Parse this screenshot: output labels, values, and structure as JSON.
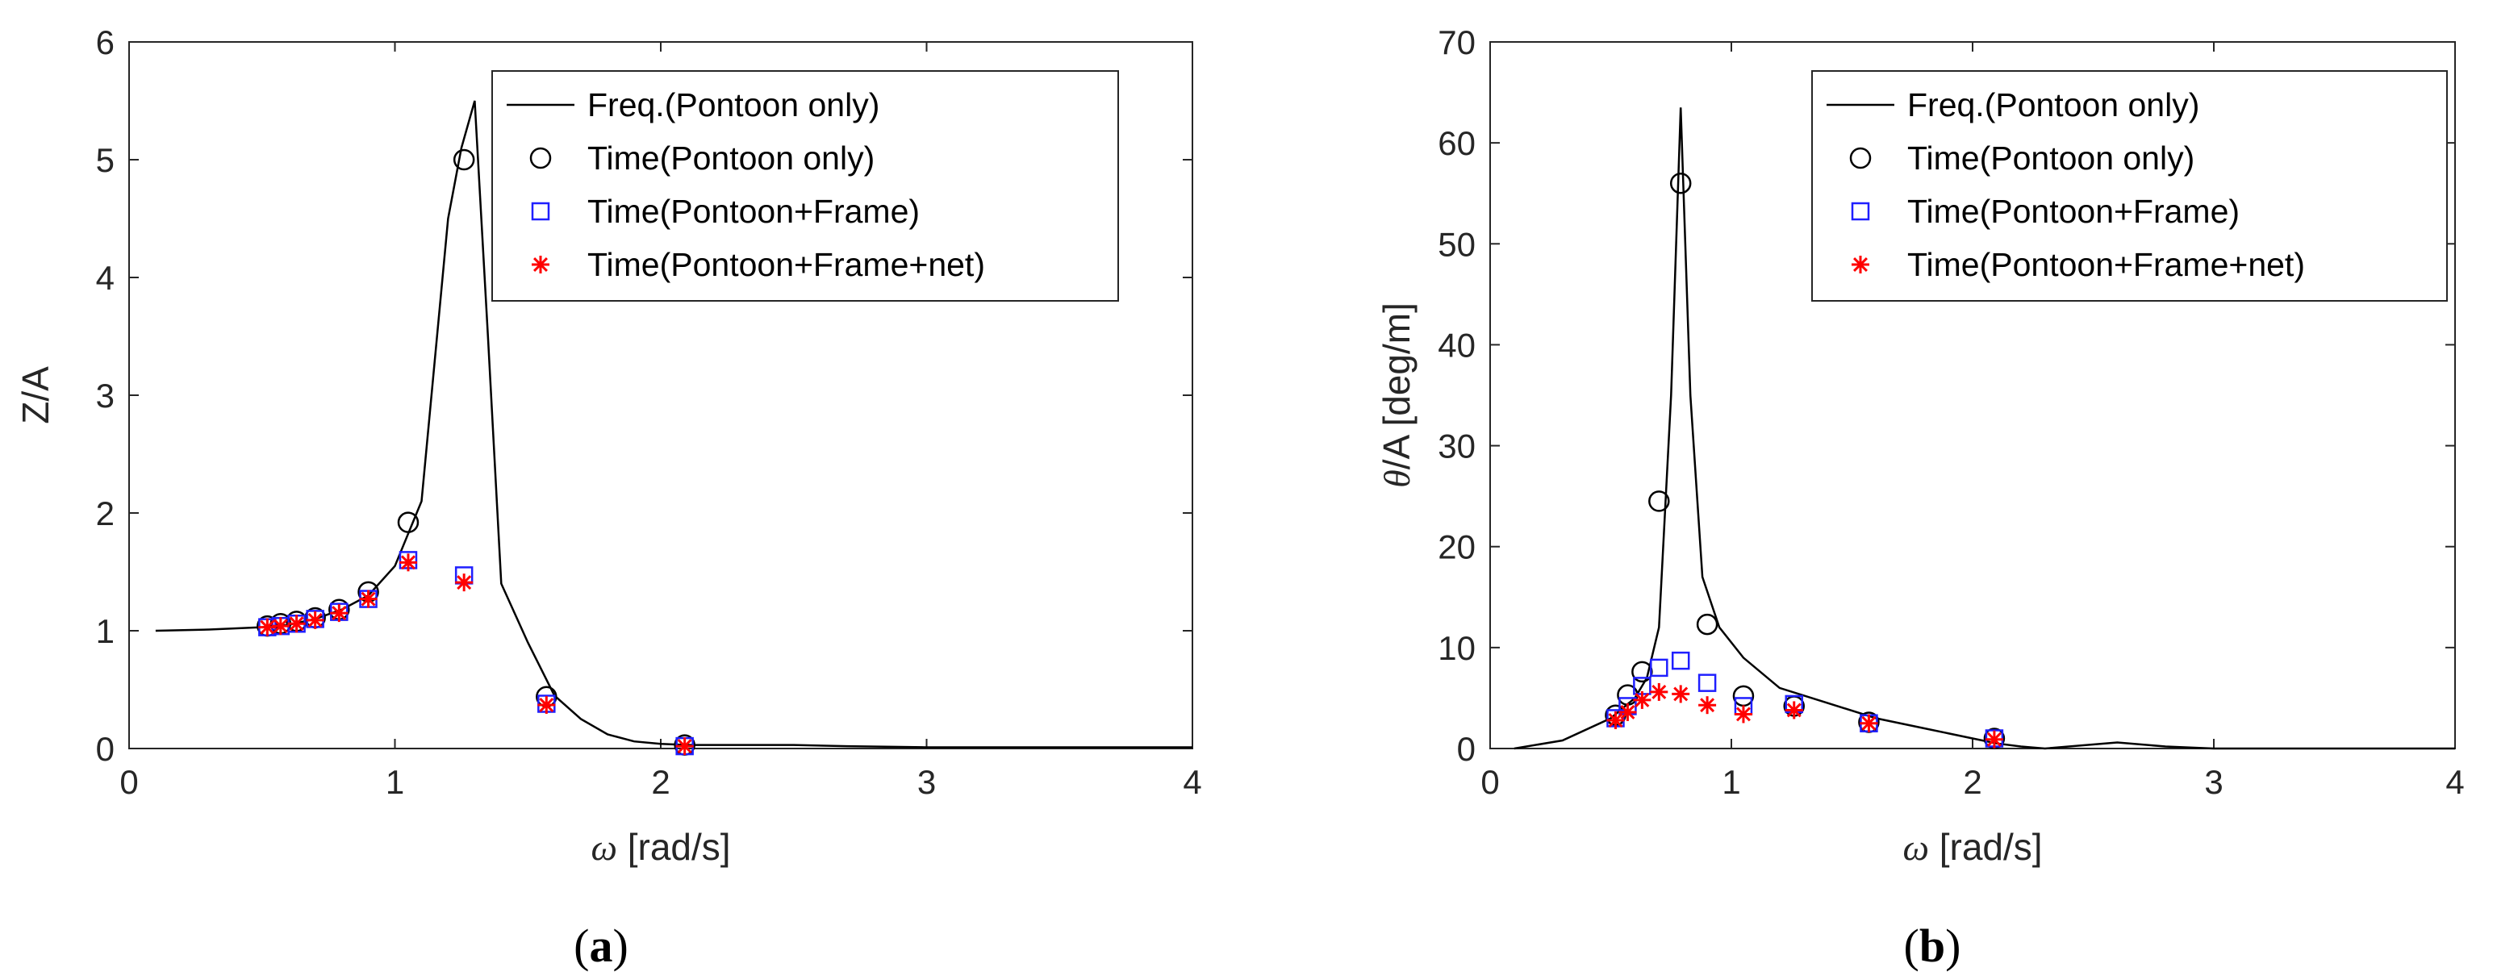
{
  "colors": {
    "freq": "#000000",
    "pontoon_only": "#000000",
    "pontoon_frame": "#1f1fff",
    "pontoon_frame_net": "#ff0000",
    "axes": "#262626"
  },
  "chart_data": [
    {
      "panel": "a",
      "type": "line",
      "xlabel_symbol": "ω",
      "xlabel_unit": "[rad/s]",
      "ylabel": "Z/A",
      "xlim": [
        0,
        4
      ],
      "ylim": [
        0,
        6
      ],
      "xticks": [
        "0",
        "1",
        "2",
        "3",
        "4"
      ],
      "yticks": [
        "0",
        "1",
        "2",
        "3",
        "4",
        "5",
        "6"
      ],
      "grid": false,
      "legend_position": "top-right",
      "label_paren_open": "(",
      "label_letter": "a",
      "label_paren_close": ")",
      "series": [
        {
          "name": "Freq.(Pontoon only)",
          "style": "line",
          "color": "#000000",
          "x": [
            0.1,
            0.3,
            0.5,
            0.6,
            0.7,
            0.8,
            0.9,
            1.0,
            1.1,
            1.2,
            1.25,
            1.3,
            1.35,
            1.4,
            1.5,
            1.6,
            1.7,
            1.8,
            1.9,
            2.0,
            2.1,
            2.3,
            2.5,
            2.7,
            3.0,
            3.5,
            4.0
          ],
          "y": [
            1.0,
            1.01,
            1.03,
            1.05,
            1.1,
            1.18,
            1.3,
            1.55,
            2.1,
            4.5,
            5.1,
            5.5,
            3.5,
            1.4,
            0.9,
            0.45,
            0.25,
            0.12,
            0.06,
            0.04,
            0.03,
            0.03,
            0.03,
            0.02,
            0.01,
            0.01,
            0.01
          ]
        },
        {
          "name": "Time(Pontoon only)",
          "style": "circle",
          "color": "#000000",
          "x": [
            0.52,
            0.57,
            0.63,
            0.7,
            0.79,
            0.9,
            1.05,
            1.26,
            1.57,
            2.09
          ],
          "y": [
            1.04,
            1.06,
            1.08,
            1.11,
            1.18,
            1.33,
            1.92,
            5.0,
            0.44,
            0.03
          ]
        },
        {
          "name": "Time(Pontoon+Frame)",
          "style": "square",
          "color": "#1f1fff",
          "x": [
            0.52,
            0.57,
            0.63,
            0.7,
            0.79,
            0.9,
            1.05,
            1.26,
            1.57,
            2.09
          ],
          "y": [
            1.03,
            1.04,
            1.06,
            1.1,
            1.16,
            1.27,
            1.6,
            1.47,
            0.38,
            0.02
          ]
        },
        {
          "name": "Time(Pontoon+Frame+net)",
          "style": "asterisk",
          "color": "#ff0000",
          "x": [
            0.52,
            0.57,
            0.63,
            0.7,
            0.79,
            0.9,
            1.05,
            1.26,
            1.57,
            2.09
          ],
          "y": [
            1.03,
            1.04,
            1.06,
            1.09,
            1.15,
            1.27,
            1.58,
            1.41,
            0.37,
            0.02
          ]
        }
      ]
    },
    {
      "panel": "b",
      "type": "line",
      "xlabel_symbol": "ω",
      "xlabel_unit": "[rad/s]",
      "ylabel_symbol": "θ",
      "ylabel_rest": "/A [deg/m]",
      "xlim": [
        0,
        4
      ],
      "ylim": [
        0,
        70
      ],
      "xticks": [
        "0",
        "1",
        "2",
        "3",
        "4"
      ],
      "yticks": [
        "0",
        "10",
        "20",
        "30",
        "40",
        "50",
        "60",
        "70"
      ],
      "grid": false,
      "legend_position": "top-right",
      "label_paren_open": "(",
      "label_letter": "b",
      "label_paren_close": ")",
      "series": [
        {
          "name": "Freq.(Pontoon only)",
          "style": "line",
          "color": "#000000",
          "x": [
            0.1,
            0.3,
            0.5,
            0.6,
            0.65,
            0.7,
            0.75,
            0.79,
            0.83,
            0.88,
            0.95,
            1.05,
            1.2,
            1.4,
            1.6,
            1.8,
            2.0,
            2.1,
            2.2,
            2.3,
            2.6,
            2.8,
            3.0,
            3.5,
            4.0
          ],
          "y": [
            0.0,
            0.8,
            3.0,
            5.0,
            7.0,
            12.0,
            35.0,
            63.5,
            35.0,
            17.0,
            12.0,
            9.0,
            6.0,
            4.5,
            3.0,
            2.0,
            1.0,
            0.5,
            0.2,
            0.0,
            0.6,
            0.2,
            0.0,
            0.0,
            0.0
          ]
        },
        {
          "name": "Time(Pontoon only)",
          "style": "circle",
          "color": "#000000",
          "x": [
            0.52,
            0.57,
            0.63,
            0.7,
            0.79,
            0.9,
            1.05,
            1.26,
            1.57,
            2.09
          ],
          "y": [
            3.3,
            5.3,
            7.6,
            24.5,
            56.0,
            12.3,
            5.2,
            4.2,
            2.6,
            1.0
          ]
        },
        {
          "name": "Time(Pontoon+Frame)",
          "style": "square",
          "color": "#1f1fff",
          "x": [
            0.52,
            0.57,
            0.63,
            0.7,
            0.79,
            0.9,
            1.05,
            1.26,
            1.57,
            2.09
          ],
          "y": [
            3.0,
            4.2,
            6.2,
            8.0,
            8.7,
            6.5,
            4.2,
            4.4,
            2.5,
            1.0
          ]
        },
        {
          "name": "Time(Pontoon+Frame+net)",
          "style": "asterisk",
          "color": "#ff0000",
          "x": [
            0.52,
            0.57,
            0.63,
            0.7,
            0.79,
            0.9,
            1.05,
            1.26,
            1.57,
            2.09
          ],
          "y": [
            2.8,
            3.6,
            4.8,
            5.6,
            5.4,
            4.3,
            3.4,
            3.8,
            2.5,
            0.9
          ]
        }
      ]
    }
  ]
}
